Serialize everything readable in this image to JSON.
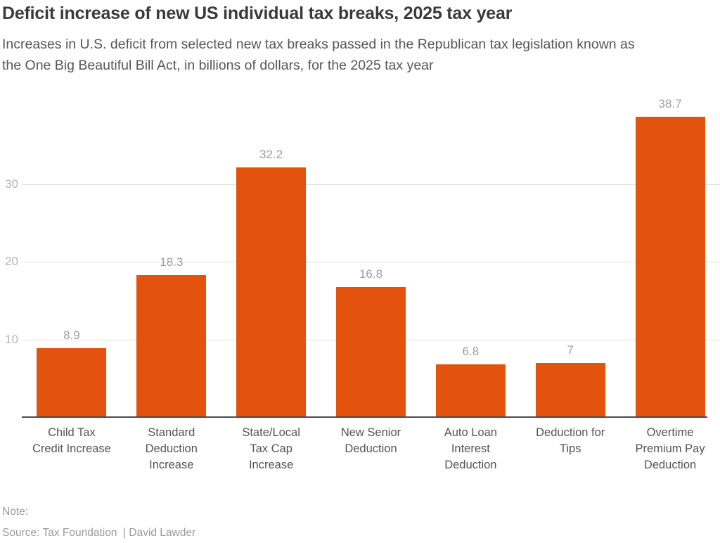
{
  "chart_data": {
    "type": "bar",
    "title": "Deficit increase of new US individual tax breaks, 2025 tax year",
    "subtitle": "Increases in U.S. deficit from selected new tax breaks passed in the Republican tax legislation known as the One Big Beautiful Bill Act, in billions of dollars, for the 2025 tax year",
    "categories": [
      "Child Tax Credit Increase",
      "Standard Deduction Increase",
      "State/Local Tax Cap Increase",
      "New Senior Deduction",
      "Auto Loan Interest Deduction",
      "Deduction for Tips",
      "Overtime Premium Pay Deduction"
    ],
    "category_lines": [
      [
        "Child Tax",
        "Credit Increase"
      ],
      [
        "Standard",
        "Deduction",
        "Increase"
      ],
      [
        "State/Local",
        "Tax Cap",
        "Increase"
      ],
      [
        "New Senior",
        "Deduction"
      ],
      [
        "Auto Loan",
        "Interest",
        "Deduction"
      ],
      [
        "Deduction for",
        "Tips"
      ],
      [
        "Overtime",
        "Premium Pay",
        "Deduction"
      ]
    ],
    "values": [
      8.9,
      18.3,
      32.2,
      16.8,
      6.8,
      7,
      38.7
    ],
    "value_labels": [
      "8.9",
      "18.3",
      "32.2",
      "16.8",
      "6.8",
      "7",
      "38.7"
    ],
    "xlabel": "",
    "ylabel": "",
    "yticks": [
      10,
      20,
      30
    ],
    "ylim": [
      0,
      42
    ],
    "grid": true,
    "legend": false,
    "bar_color": "#e4530d",
    "colors": {
      "grid": "#dedede",
      "axis": "#4b4b4b",
      "tick_label": "#b5b5b5",
      "value_label": "#9e9e9e",
      "category_label": "#545454"
    }
  },
  "footer": {
    "note": "Note:",
    "source": "Source: Tax Foundation  | David Lawder"
  }
}
